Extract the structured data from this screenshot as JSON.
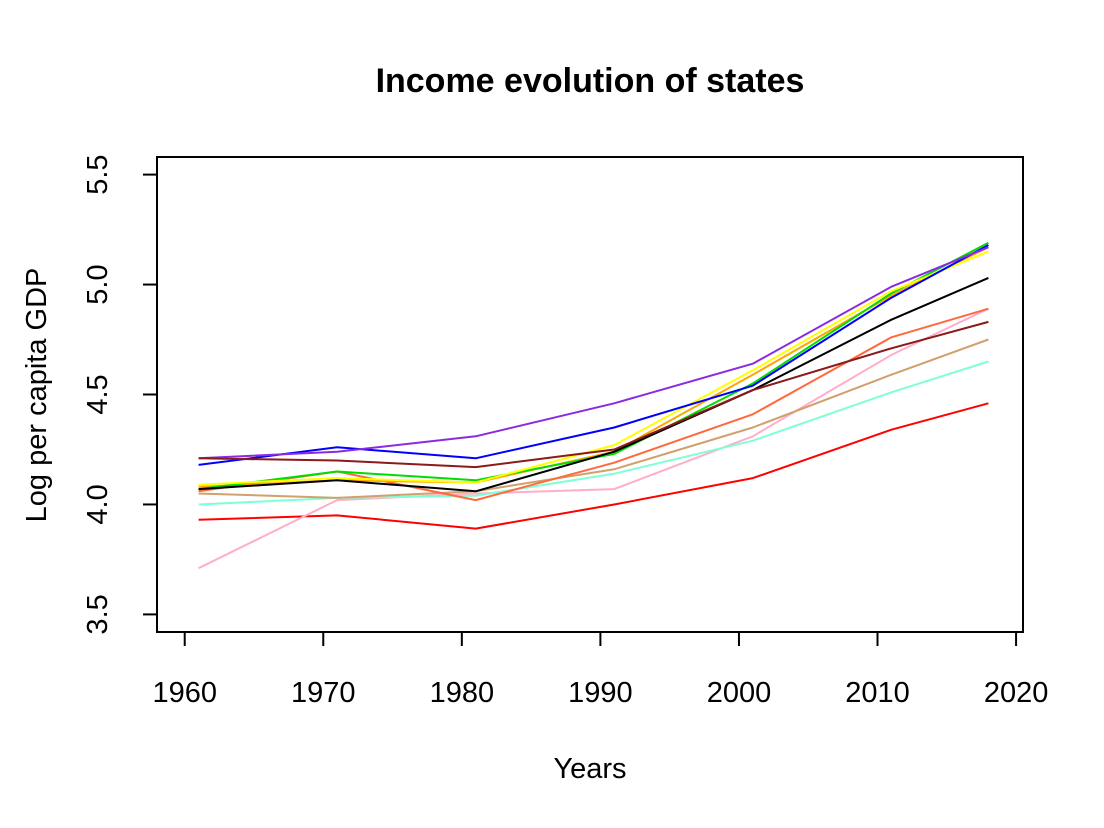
{
  "chart_data": {
    "type": "line",
    "title": "Income evolution of states",
    "xlabel": "Years",
    "ylabel": "Log per capita GDP",
    "xlim": [
      1958,
      2020.5
    ],
    "ylim": [
      3.42,
      5.58
    ],
    "xticks": [
      1960,
      1970,
      1980,
      1990,
      2000,
      2010,
      2020
    ],
    "xtick_labels": [
      "1960",
      "1970",
      "1980",
      "1990",
      "2000",
      "2010",
      "2020"
    ],
    "yticks": [
      3.5,
      4.0,
      4.5,
      5.0,
      5.5
    ],
    "ytick_labels": [
      "3.5",
      "4.0",
      "4.5",
      "5.0",
      "5.5"
    ],
    "grid": false,
    "legend": "none",
    "x": [
      1961,
      1971,
      1981,
      1991,
      2001,
      2011,
      2018
    ],
    "series": [
      {
        "color": "#ff0000",
        "values": [
          3.93,
          3.95,
          3.89,
          4.0,
          4.12,
          4.34,
          4.46
        ]
      },
      {
        "color": "#ffaec9",
        "values": [
          3.71,
          4.02,
          4.05,
          4.07,
          4.31,
          4.68,
          4.89
        ]
      },
      {
        "color": "#7fffd4",
        "values": [
          4.0,
          4.03,
          4.04,
          4.14,
          4.29,
          4.51,
          4.65
        ]
      },
      {
        "color": "#d2a06c",
        "values": [
          4.05,
          4.03,
          4.06,
          4.16,
          4.35,
          4.59,
          4.75
        ]
      },
      {
        "color": "#ff6a3d",
        "values": [
          4.06,
          4.15,
          4.02,
          4.19,
          4.41,
          4.76,
          4.89
        ]
      },
      {
        "color": "#ffa500",
        "values": [
          4.08,
          4.11,
          4.1,
          4.24,
          4.59,
          4.95,
          5.17
        ]
      },
      {
        "color": "#00dd00",
        "values": [
          4.07,
          4.15,
          4.11,
          4.23,
          4.55,
          4.96,
          5.19
        ]
      },
      {
        "color": "#ffff00",
        "values": [
          4.09,
          4.12,
          4.1,
          4.27,
          4.61,
          4.97,
          5.15
        ]
      },
      {
        "color": "#000000",
        "values": [
          4.07,
          4.11,
          4.06,
          4.24,
          4.52,
          4.84,
          5.03
        ]
      },
      {
        "color": "#0000ff",
        "values": [
          4.18,
          4.26,
          4.21,
          4.35,
          4.54,
          4.94,
          5.18
        ]
      },
      {
        "color": "#8a2be2",
        "values": [
          4.21,
          4.24,
          4.31,
          4.46,
          4.64,
          4.99,
          5.17
        ]
      },
      {
        "color": "#8b1a1a",
        "values": [
          4.21,
          4.2,
          4.17,
          4.25,
          4.52,
          4.71,
          4.83
        ]
      }
    ]
  }
}
